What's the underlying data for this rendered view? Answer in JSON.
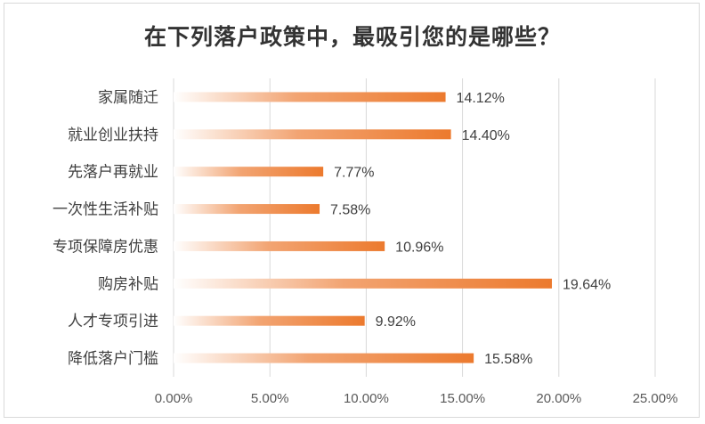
{
  "chart_data": {
    "type": "bar",
    "orientation": "horizontal",
    "title": "在下列落户政策中，最吸引您的是哪些？",
    "categories": [
      "家属随迁",
      "就业创业扶持",
      "先落户再就业",
      "一次性生活补贴",
      "专项保障房优惠",
      "购房补贴",
      "人才专项引进",
      "降低落户门槛"
    ],
    "values": [
      14.12,
      14.4,
      7.77,
      7.58,
      10.96,
      19.64,
      9.92,
      15.58
    ],
    "value_labels": [
      "14.12%",
      "14.40%",
      "7.77%",
      "7.58%",
      "10.96%",
      "19.64%",
      "9.92%",
      "15.58%"
    ],
    "x_ticks": [
      "0.00%",
      "5.00%",
      "10.00%",
      "15.00%",
      "20.00%",
      "25.00%"
    ],
    "xlim": [
      0,
      25
    ],
    "grid": true,
    "bar_color": "#ee7f33"
  }
}
